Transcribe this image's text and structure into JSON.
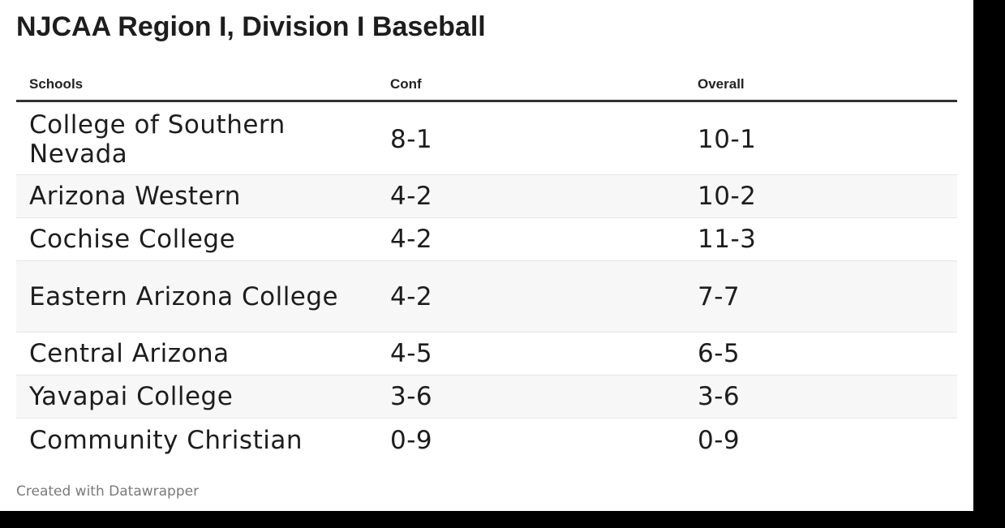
{
  "chart_data": {
    "type": "table",
    "title": "NJCAA Region I, Division I Baseball",
    "columns": [
      "Schools",
      "Conf",
      "Overall"
    ],
    "rows": [
      {
        "school": "College of Southern Nevada",
        "conf": "8-1",
        "overall": "10-1"
      },
      {
        "school": "Arizona Western",
        "conf": "4-2",
        "overall": "10-2"
      },
      {
        "school": "Cochise College",
        "conf": "4-2",
        "overall": "11-3"
      },
      {
        "school": "Eastern Arizona College",
        "conf": "4-2",
        "overall": "7-7"
      },
      {
        "school": "Central Arizona",
        "conf": "4-5",
        "overall": "6-5"
      },
      {
        "school": "Yavapai College",
        "conf": "3-6",
        "overall": "3-6"
      },
      {
        "school": "Community Christian",
        "conf": "0-9",
        "overall": "0-9"
      }
    ],
    "footer": "Created with Datawrapper"
  },
  "colors": {
    "text": "#1d1d1d",
    "alt_row": "#f7f7f7",
    "header_rule": "#333333",
    "footer_text": "#7a7a7a"
  }
}
